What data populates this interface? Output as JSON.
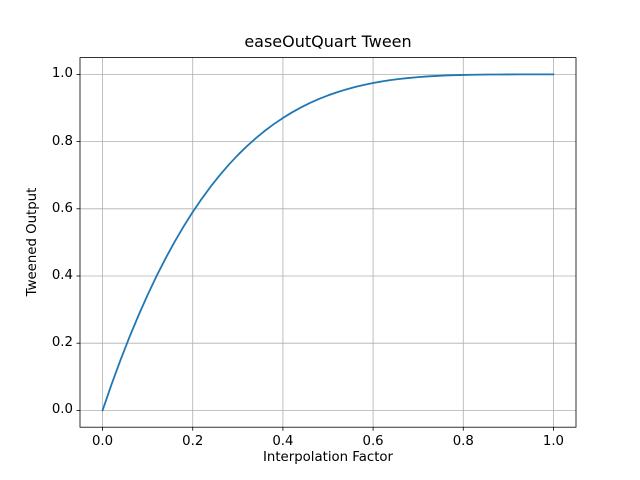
{
  "figure": {
    "background": "#ffffff",
    "axes_edge_color": "#000000",
    "text_color": "#000000"
  },
  "chart_data": {
    "type": "line",
    "title": "easeOutQuart Tween",
    "xlabel": "Interpolation Factor",
    "ylabel": "Tweened Output",
    "xlim": [
      -0.05,
      1.05
    ],
    "ylim": [
      -0.05,
      1.05
    ],
    "xticks": [
      0.0,
      0.2,
      0.4,
      0.6,
      0.8,
      1.0
    ],
    "yticks": [
      0.0,
      0.2,
      0.4,
      0.6,
      0.8,
      1.0
    ],
    "xtick_labels": [
      "0.0",
      "0.2",
      "0.4",
      "0.6",
      "0.8",
      "1.0"
    ],
    "ytick_labels": [
      "0.0",
      "0.2",
      "0.4",
      "0.6",
      "0.8",
      "1.0"
    ],
    "grid": true,
    "grid_color": "#b0b0b0",
    "legend": "none",
    "series": [
      {
        "color": "#1f77b4",
        "line_width": 1.8,
        "x": [
          0,
          0.02,
          0.04,
          0.06,
          0.08,
          0.1,
          0.12,
          0.14,
          0.16,
          0.18,
          0.2,
          0.22,
          0.24,
          0.26,
          0.28,
          0.3,
          0.32,
          0.34,
          0.36,
          0.38,
          0.4,
          0.42,
          0.44,
          0.46,
          0.48,
          0.5,
          0.52,
          0.54,
          0.56,
          0.58,
          0.6,
          0.62,
          0.64,
          0.66,
          0.68,
          0.7,
          0.72,
          0.74,
          0.76,
          0.78,
          0.8,
          0.82,
          0.84,
          0.86,
          0.88,
          0.9,
          0.92,
          0.94,
          0.96,
          0.98,
          1
        ],
        "y": [
          0,
          0.0776,
          0.1507,
          0.2193,
          0.2836,
          0.3439,
          0.4003,
          0.453,
          0.5021,
          0.5479,
          0.5904,
          0.6298,
          0.6664,
          0.7001,
          0.7313,
          0.7599,
          0.7862,
          0.8103,
          0.8322,
          0.8522,
          0.8704,
          0.8868,
          0.9017,
          0.915,
          0.9269,
          0.9375,
          0.9469,
          0.9552,
          0.9625,
          0.9689,
          0.9744,
          0.9791,
          0.9832,
          0.9866,
          0.9895,
          0.9919,
          0.9939,
          0.9954,
          0.9967,
          0.9977,
          0.9984,
          0.999,
          0.9993,
          0.9996,
          0.9998,
          0.9999,
          1,
          1,
          1,
          1,
          1
        ]
      }
    ]
  }
}
